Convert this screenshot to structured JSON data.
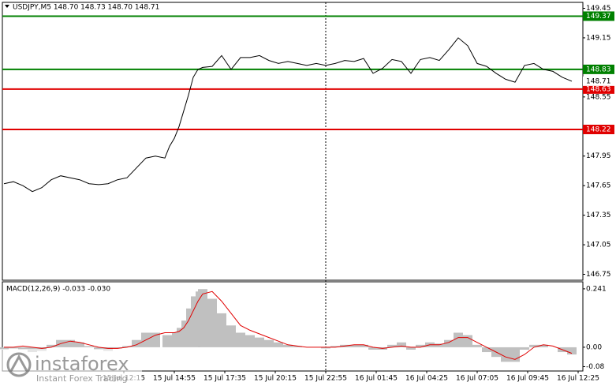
{
  "chart_data": [
    {
      "type": "line",
      "title": "USDJPY,M5  148.70 148.73 148.70 148.71",
      "color": "#000000",
      "xlim": [
        0,
        367
      ],
      "ylim": [
        146.69,
        149.51
      ],
      "yticks": [
        149.45,
        149.15,
        148.55,
        147.95,
        147.65,
        147.35,
        147.05,
        146.75
      ],
      "x": [
        0,
        6,
        12,
        18,
        24,
        30,
        36,
        42,
        48,
        54,
        60,
        66,
        72,
        78,
        84,
        90,
        96,
        102,
        105,
        108,
        111,
        114,
        117,
        120,
        123,
        126,
        132,
        138,
        144,
        150,
        156,
        162,
        168,
        174,
        180,
        186,
        192,
        198,
        204,
        210,
        216,
        222,
        228,
        234,
        240,
        246,
        252,
        258,
        264,
        270,
        276,
        282,
        288,
        294,
        300,
        306,
        312,
        318,
        324,
        330,
        336,
        342,
        348,
        354,
        360
      ],
      "values": [
        147.67,
        147.69,
        147.65,
        147.59,
        147.63,
        147.71,
        147.75,
        147.73,
        147.71,
        147.67,
        147.66,
        147.67,
        147.71,
        147.73,
        147.83,
        147.93,
        147.95,
        147.93,
        148.05,
        148.13,
        148.25,
        148.41,
        148.57,
        148.75,
        148.83,
        148.85,
        148.86,
        148.97,
        148.83,
        148.95,
        148.95,
        148.97,
        148.92,
        148.89,
        148.91,
        148.89,
        148.87,
        148.89,
        148.87,
        148.89,
        148.92,
        148.91,
        148.94,
        148.79,
        148.84,
        148.93,
        148.91,
        148.79,
        148.93,
        148.95,
        148.92,
        149.03,
        149.15,
        149.07,
        148.89,
        148.86,
        148.79,
        148.73,
        148.7,
        148.87,
        148.89,
        148.83,
        148.81,
        148.75,
        148.71
      ],
      "levels": [
        {
          "value": 149.37,
          "color": "#008000"
        },
        {
          "value": 148.83,
          "color": "#008000"
        },
        {
          "value": 148.63,
          "color": "#e00000"
        },
        {
          "value": 148.22,
          "color": "#e00000"
        }
      ],
      "current_price": 148.71
    },
    {
      "type": "macd",
      "title": "MACD(12,26,9) -0.033 -0.030",
      "histogram_color": "#c0c0c0",
      "signal_color": "#e00000",
      "xlim": [
        0,
        367
      ],
      "ylim": [
        -0.098,
        0.27
      ],
      "yticks": [
        0.241,
        {
          "value": 0,
          "label": "0.00"
        },
        {
          "value": -0.08,
          "label": "-0.08"
        }
      ],
      "xticks": [
        {
          "value": 76,
          "label": "15 Jul 12:15"
        },
        {
          "value": 108,
          "label": "15 Jul 14:55"
        },
        {
          "value": 140,
          "label": "15 Jul 17:35"
        },
        {
          "value": 172,
          "label": "15 Jul 20:15"
        },
        {
          "value": 204,
          "label": "15 Jul 22:55"
        },
        {
          "value": 236,
          "label": "16 Jul 01:45"
        },
        {
          "value": 268,
          "label": "16 Jul 04:25"
        },
        {
          "value": 300,
          "label": "16 Jul 07:05"
        },
        {
          "value": 332,
          "label": "16 Jul 09:45"
        },
        {
          "value": 364,
          "label": "16 Jul 12:25"
        }
      ],
      "x": [
        0,
        6,
        12,
        18,
        24,
        30,
        36,
        42,
        48,
        54,
        60,
        66,
        72,
        78,
        84,
        90,
        96,
        102,
        105,
        108,
        111,
        114,
        117,
        120,
        123,
        126,
        132,
        138,
        144,
        150,
        156,
        162,
        168,
        174,
        180,
        186,
        192,
        198,
        204,
        210,
        216,
        222,
        228,
        234,
        240,
        246,
        252,
        258,
        264,
        270,
        276,
        282,
        288,
        294,
        300,
        306,
        312,
        318,
        324,
        330,
        336,
        342,
        348,
        354,
        360
      ],
      "histogram": [
        -0.01,
        -0.005,
        -0.01,
        -0.02,
        -0.015,
        0.01,
        0.03,
        0.03,
        0.02,
        0.005,
        -0.01,
        -0.015,
        -0.005,
        0.005,
        0.03,
        0.06,
        0.06,
        0.05,
        0.05,
        0.06,
        0.08,
        0.11,
        0.16,
        0.21,
        0.23,
        0.24,
        0.2,
        0.14,
        0.09,
        0.06,
        0.05,
        0.04,
        0.03,
        0.02,
        0.01,
        0.005,
        0,
        0,
        -0.005,
        0.005,
        0.01,
        0.01,
        0.01,
        -0.01,
        -0.01,
        0.01,
        0.02,
        -0.01,
        0.01,
        0.02,
        0.015,
        0.03,
        0.06,
        0.05,
        0.01,
        -0.02,
        -0.04,
        -0.06,
        -0.06,
        -0.01,
        0.01,
        0.01,
        0,
        -0.02,
        -0.03
      ],
      "signal": [
        0,
        0,
        0.005,
        0,
        -0.005,
        0,
        0.015,
        0.025,
        0.02,
        0.01,
        0,
        -0.005,
        -0.005,
        0,
        0.01,
        0.03,
        0.05,
        0.06,
        0.06,
        0.06,
        0.065,
        0.08,
        0.11,
        0.15,
        0.19,
        0.22,
        0.23,
        0.19,
        0.14,
        0.09,
        0.07,
        0.055,
        0.04,
        0.025,
        0.01,
        0.005,
        0,
        0,
        0,
        0,
        0.005,
        0.01,
        0.01,
        0,
        -0.005,
        0,
        0.005,
        0,
        0,
        0.01,
        0.01,
        0.02,
        0.04,
        0.04,
        0.02,
        0,
        -0.02,
        -0.04,
        -0.05,
        -0.03,
        0,
        0.01,
        0.005,
        -0.01,
        -0.025
      ]
    }
  ],
  "watermark": {
    "brand": "instaforex",
    "tagline": "Instant Forex Trading"
  }
}
